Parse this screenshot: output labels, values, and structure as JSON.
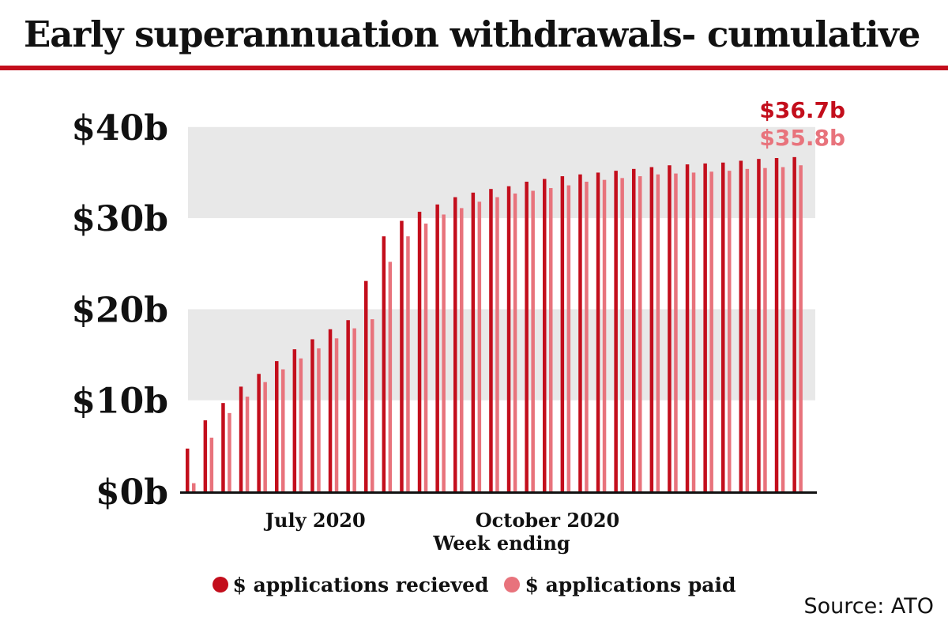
{
  "colors": {
    "accent": "#c30e1c",
    "received": "#c30e1c",
    "paid": "#e8737c",
    "band": "#e8e8e8",
    "axis": "#111111"
  },
  "source": "Source: ATO",
  "chart_data": {
    "type": "bar",
    "title": "Early superannuation withdrawals- cumulative",
    "xlabel": "Week ending",
    "ylabel": "",
    "ylim": [
      0,
      40
    ],
    "y_ticks": [
      {
        "value": 0,
        "label": "$0b"
      },
      {
        "value": 10,
        "label": "$10b"
      },
      {
        "value": 20,
        "label": "$20b"
      },
      {
        "value": 30,
        "label": "$30b"
      },
      {
        "value": 40,
        "label": "$40b"
      }
    ],
    "x_ticks": [
      {
        "index": 7,
        "label": "July 2020"
      },
      {
        "index": 20,
        "label": "October 2020"
      }
    ],
    "grid": "alternating horizontal bands",
    "legend": "bottom-center",
    "series": [
      {
        "name": "$ applications recieved",
        "color": "#c30e1c",
        "values": [
          4.7,
          7.8,
          9.7,
          11.5,
          12.9,
          14.3,
          15.6,
          16.7,
          17.8,
          18.8,
          23.1,
          28.0,
          29.7,
          30.7,
          31.5,
          32.3,
          32.8,
          33.2,
          33.5,
          34.0,
          34.3,
          34.6,
          34.8,
          35.0,
          35.2,
          35.4,
          35.6,
          35.8,
          35.9,
          36.0,
          36.1,
          36.3,
          36.5,
          36.6,
          36.7
        ]
      },
      {
        "name": "$ applications paid",
        "color": "#e8737c",
        "values": [
          0.9,
          5.9,
          8.6,
          10.4,
          12.0,
          13.4,
          14.6,
          15.7,
          16.8,
          17.9,
          18.9,
          25.2,
          28.0,
          29.4,
          30.4,
          31.1,
          31.8,
          32.3,
          32.7,
          33.0,
          33.3,
          33.6,
          34.0,
          34.2,
          34.4,
          34.6,
          34.8,
          34.9,
          35.0,
          35.1,
          35.2,
          35.4,
          35.5,
          35.6,
          35.8
        ]
      }
    ],
    "annotations": [
      {
        "label": "$36.7b",
        "color": "#c30e1c"
      },
      {
        "label": "$35.8b",
        "color": "#e8737c"
      }
    ]
  }
}
